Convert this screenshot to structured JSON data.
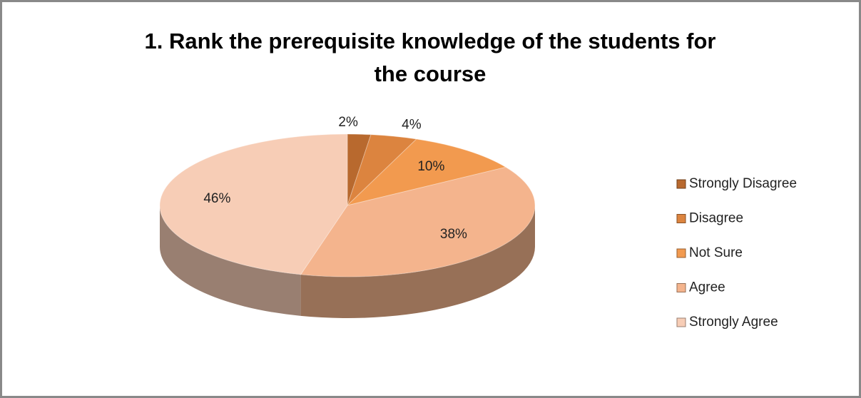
{
  "chart_data": {
    "type": "pie",
    "title": "1. Rank the prerequisite knowledge of the students for the course",
    "categories": [
      "Strongly Disagree",
      "Disagree",
      "Not Sure",
      "Agree",
      "Strongly Agree"
    ],
    "values": [
      2,
      4,
      10,
      38,
      46
    ],
    "value_labels": [
      "2%",
      "4%",
      "10%",
      "38%",
      "46%"
    ],
    "colors": [
      "#b8692e",
      "#dc843f",
      "#f29a4f",
      "#f4b48d",
      "#f7cdb6"
    ],
    "legend": "right"
  }
}
